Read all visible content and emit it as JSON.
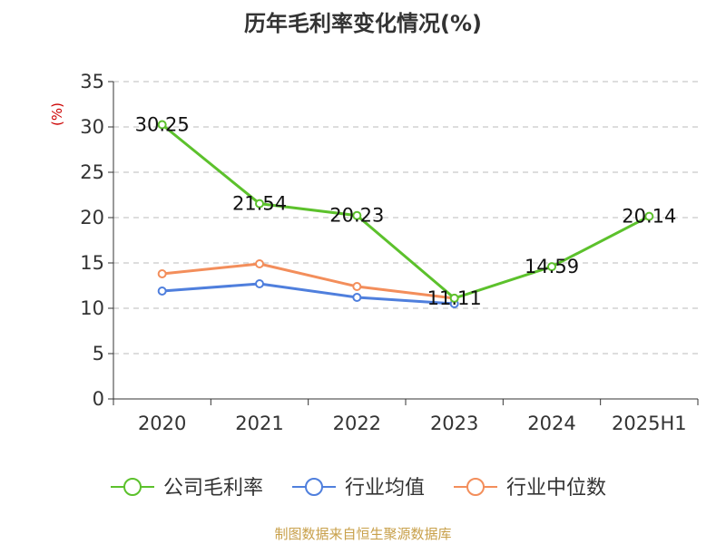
{
  "title": "历年毛利率变化情况(%)",
  "footer": "制图数据来自恒生聚源数据库",
  "chart_data": {
    "type": "line",
    "title": "历年毛利率变化情况(%)",
    "ylabel": "(%)",
    "xlabel": "",
    "categories": [
      "2020",
      "2021",
      "2022",
      "2023",
      "2024",
      "2025H1"
    ],
    "ylim": [
      0,
      35
    ],
    "yticks": [
      0,
      5,
      10,
      15,
      20,
      25,
      30,
      35
    ],
    "grid": true,
    "legend_position": "bottom",
    "series": [
      {
        "name": "公司毛利率",
        "color": "#5cc12c",
        "labeled": true,
        "values": [
          30.25,
          21.54,
          20.23,
          11.11,
          14.59,
          20.14
        ],
        "labels": [
          "30.25",
          "21.54",
          "20.23",
          "11.11",
          "14.59",
          "20.14"
        ]
      },
      {
        "name": "行业均值",
        "color": "#4f7fdd",
        "labeled": false,
        "values": [
          11.9,
          12.7,
          11.2,
          10.5,
          null,
          null
        ]
      },
      {
        "name": "行业中位数",
        "color": "#f38e5b",
        "labeled": false,
        "values": [
          13.8,
          14.9,
          12.4,
          11.1,
          null,
          null
        ]
      }
    ]
  }
}
